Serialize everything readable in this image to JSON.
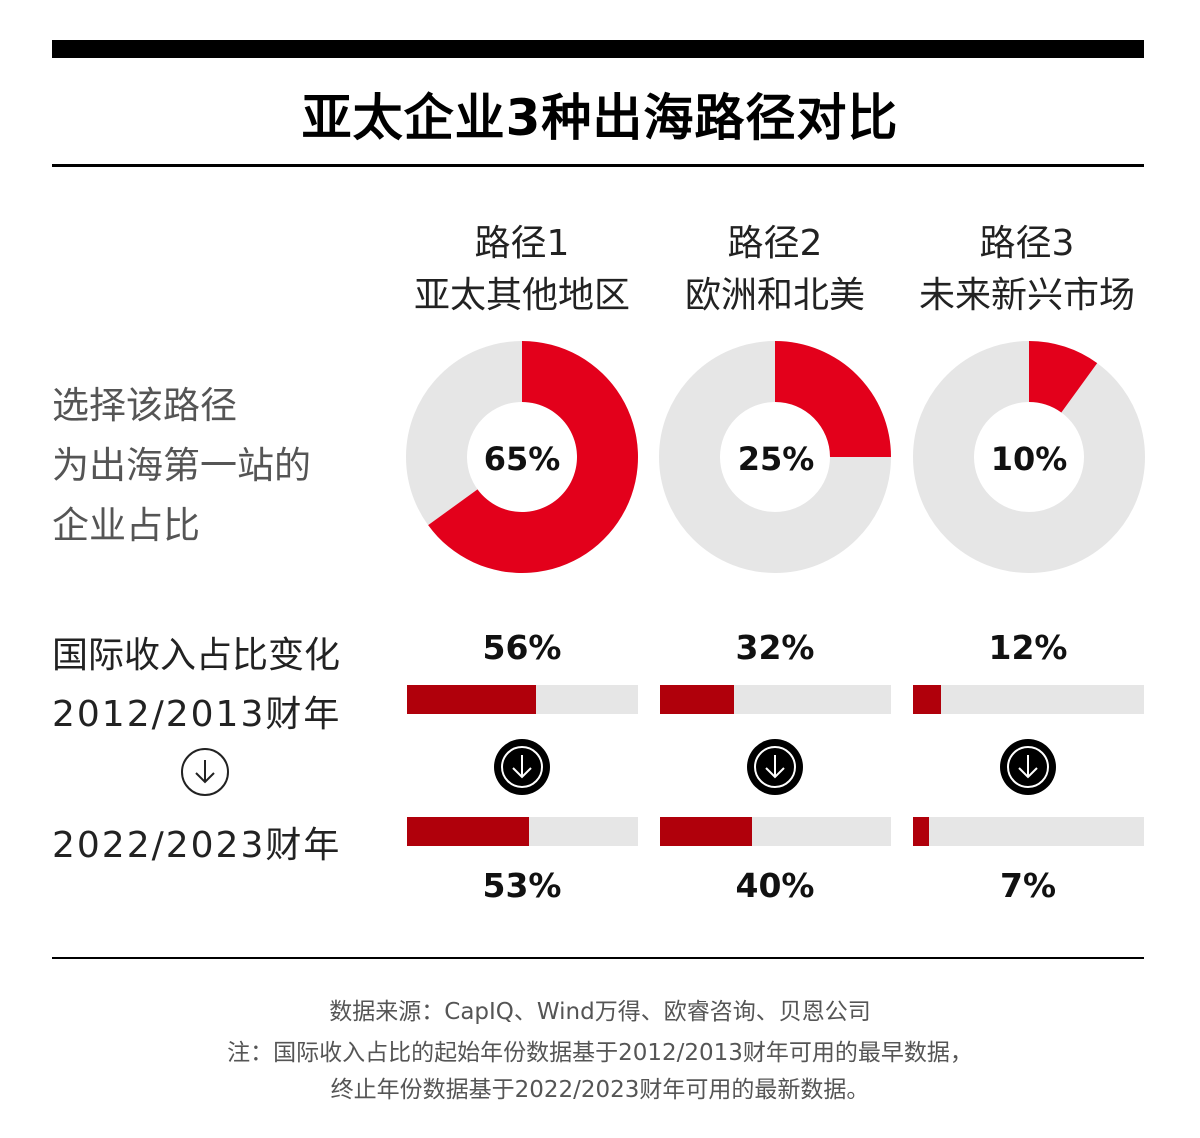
{
  "title": "亚太企业3种出海路径对比",
  "columns": [
    {
      "path": "路径1",
      "name": "亚太其他地区"
    },
    {
      "path": "路径2",
      "name": "欧洲和北美"
    },
    {
      "path": "路径3",
      "name": "未来新兴市场"
    }
  ],
  "row1_label": [
    "选择该路径",
    "为出海第一站的",
    "企业占比"
  ],
  "row2_label": {
    "line1": "国际收入占比变化",
    "line2": "2012/2013财年",
    "line3": "2022/2023财年"
  },
  "colors": {
    "donut_red": "#e3001b",
    "donut_gray": "#e6e6e6",
    "bar_red": "#b0000b",
    "bar_gray": "#e6e6e6"
  },
  "chart_data": [
    {
      "type": "pie",
      "title": "选择该路径为出海第一站的企业占比",
      "categories": [
        "路径1 亚太其他地区",
        "路径2 欧洲和北美",
        "路径3 未来新兴市场"
      ],
      "values": [
        65,
        25,
        10
      ],
      "labels": [
        "65%",
        "25%",
        "10%"
      ]
    },
    {
      "type": "bar",
      "title": "国际收入占比变化",
      "categories": [
        "路径1 亚太其他地区",
        "路径2 欧洲和北美",
        "路径3 未来新兴市场"
      ],
      "series": [
        {
          "name": "2012/2013财年",
          "values": [
            56,
            32,
            12
          ],
          "labels": [
            "56%",
            "32%",
            "12%"
          ]
        },
        {
          "name": "2022/2023财年",
          "values": [
            53,
            40,
            7
          ],
          "labels": [
            "53%",
            "40%",
            "7%"
          ]
        }
      ],
      "ylim": [
        0,
        100
      ]
    }
  ],
  "footer": {
    "source": "数据来源：CapIQ、Wind万得、欧睿咨询、贝恩公司",
    "note1": "注：国际收入占比的起始年份数据基于2012/2013财年可用的最早数据，",
    "note2": "终止年份数据基于2022/2023财年可用的最新数据。"
  }
}
